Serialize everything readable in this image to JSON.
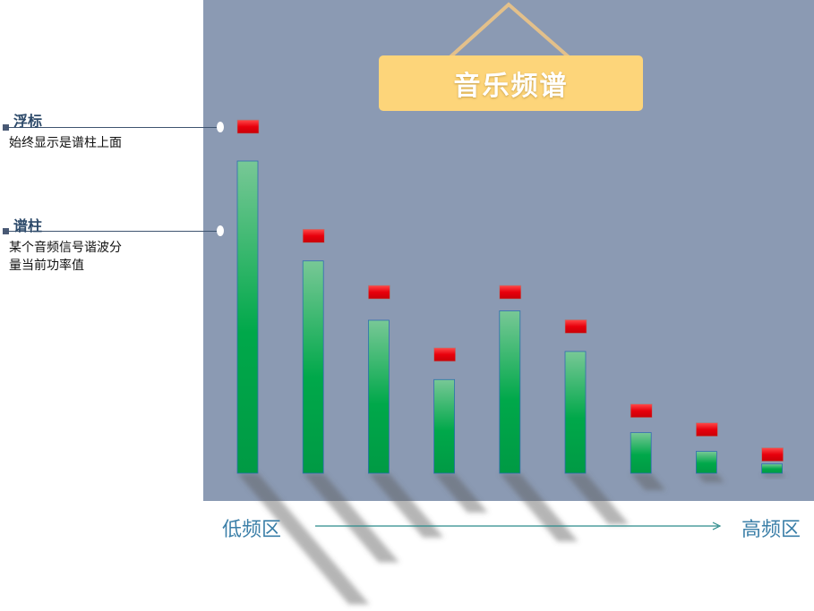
{
  "sign": {
    "title": "音乐频谱"
  },
  "annotations": [
    {
      "title": "浮标",
      "desc": [
        "始终显示是谱柱上面"
      ]
    },
    {
      "title": "谱柱",
      "desc": [
        "某个音频信号谐波分",
        "量当前功率值"
      ]
    }
  ],
  "axis": {
    "low_label": "低频区",
    "high_label": "高频区"
  },
  "colors": {
    "panel": "#8b9ab3",
    "bar_top": "#78c896",
    "bar_bottom": "#00a84a",
    "float_marker": "#e8000c",
    "sign": "#fdd57a"
  },
  "chart_data": {
    "type": "bar",
    "bars": [
      100,
      68,
      49,
      30,
      52,
      39,
      13,
      7,
      3
    ],
    "floats": [
      111,
      76,
      58,
      38,
      58,
      47,
      20,
      14,
      6
    ]
  }
}
